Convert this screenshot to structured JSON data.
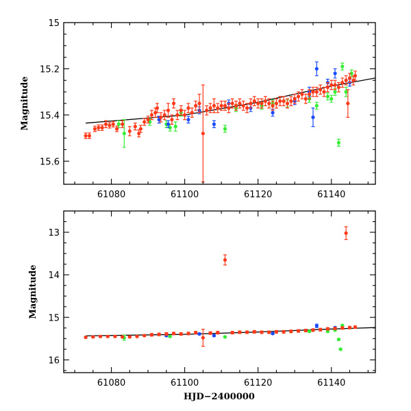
{
  "chart_data": [
    {
      "type": "scatter",
      "panel": "top",
      "title": "",
      "xlabel": "",
      "ylabel": "Magnitude",
      "xlim": [
        61067,
        61152
      ],
      "ylim": [
        15.7,
        15.0
      ],
      "y_inverted": true,
      "xticks": [
        61080,
        61100,
        61120,
        61140
      ],
      "xtick_labels": [
        "61080",
        "61100",
        "61120",
        "61140"
      ],
      "yticks": [
        15,
        15.2,
        15.4,
        15.6
      ],
      "ytick_labels": [
        "15",
        "15.2",
        "15.4",
        "15.6"
      ],
      "fit_line": {
        "x": [
          61073,
          61100,
          61120,
          61140,
          61152
        ],
        "y": [
          15.435,
          15.4,
          15.345,
          15.275,
          15.24
        ],
        "color": "#000000"
      },
      "series": [
        {
          "name": "red",
          "color": "#ff3a1a",
          "points": [
            {
              "x": 61073,
              "y": 15.49,
              "e": 0.012
            },
            {
              "x": 61074,
              "y": 15.49,
              "e": 0.012
            },
            {
              "x": 61075.5,
              "y": 15.46,
              "e": 0.012
            },
            {
              "x": 61076.5,
              "y": 15.455,
              "e": 0.012
            },
            {
              "x": 61077.5,
              "y": 15.455,
              "e": 0.012
            },
            {
              "x": 61078.5,
              "y": 15.44,
              "e": 0.015
            },
            {
              "x": 61079.5,
              "y": 15.445,
              "e": 0.012
            },
            {
              "x": 61080.5,
              "y": 15.44,
              "e": 0.012
            },
            {
              "x": 61081.5,
              "y": 15.46,
              "e": 0.012
            },
            {
              "x": 61083,
              "y": 15.44,
              "e": 0.015
            },
            {
              "x": 61085,
              "y": 15.47,
              "e": 0.02
            },
            {
              "x": 61086.5,
              "y": 15.45,
              "e": 0.015
            },
            {
              "x": 61087.5,
              "y": 15.48,
              "e": 0.015
            },
            {
              "x": 61088,
              "y": 15.46,
              "e": 0.015
            },
            {
              "x": 61089,
              "y": 15.43,
              "e": 0.015
            },
            {
              "x": 61090,
              "y": 15.42,
              "e": 0.015
            },
            {
              "x": 61091,
              "y": 15.4,
              "e": 0.02
            },
            {
              "x": 61092,
              "y": 15.39,
              "e": 0.02
            },
            {
              "x": 61092.5,
              "y": 15.37,
              "e": 0.02
            },
            {
              "x": 61093.5,
              "y": 15.41,
              "e": 0.02
            },
            {
              "x": 61094.5,
              "y": 15.4,
              "e": 0.02
            },
            {
              "x": 61095.5,
              "y": 15.38,
              "e": 0.03
            },
            {
              "x": 61096.5,
              "y": 15.42,
              "e": 0.02
            },
            {
              "x": 61097,
              "y": 15.35,
              "e": 0.02
            },
            {
              "x": 61098,
              "y": 15.4,
              "e": 0.02
            },
            {
              "x": 61099,
              "y": 15.38,
              "e": 0.02
            },
            {
              "x": 61100,
              "y": 15.4,
              "e": 0.02
            },
            {
              "x": 61101,
              "y": 15.37,
              "e": 0.02
            },
            {
              "x": 61102,
              "y": 15.39,
              "e": 0.02
            },
            {
              "x": 61103,
              "y": 15.36,
              "e": 0.02
            },
            {
              "x": 61104,
              "y": 15.35,
              "e": 0.04
            },
            {
              "x": 61105,
              "y": 15.48,
              "e": 0.21
            },
            {
              "x": 61106,
              "y": 15.38,
              "e": 0.02
            },
            {
              "x": 61107,
              "y": 15.37,
              "e": 0.02
            },
            {
              "x": 61108,
              "y": 15.36,
              "e": 0.03
            },
            {
              "x": 61109,
              "y": 15.37,
              "e": 0.02
            },
            {
              "x": 61110,
              "y": 15.36,
              "e": 0.02
            },
            {
              "x": 61111,
              "y": 15.36,
              "e": 0.02
            },
            {
              "x": 61112,
              "y": 15.37,
              "e": 0.02
            },
            {
              "x": 61113,
              "y": 15.35,
              "e": 0.02
            },
            {
              "x": 61114,
              "y": 15.36,
              "e": 0.02
            },
            {
              "x": 61115,
              "y": 15.35,
              "e": 0.02
            },
            {
              "x": 61116,
              "y": 15.36,
              "e": 0.02
            },
            {
              "x": 61117,
              "y": 15.37,
              "e": 0.02
            },
            {
              "x": 61118,
              "y": 15.35,
              "e": 0.02
            },
            {
              "x": 61119,
              "y": 15.34,
              "e": 0.02
            },
            {
              "x": 61120,
              "y": 15.35,
              "e": 0.02
            },
            {
              "x": 61121,
              "y": 15.35,
              "e": 0.02
            },
            {
              "x": 61122,
              "y": 15.34,
              "e": 0.02
            },
            {
              "x": 61123,
              "y": 15.35,
              "e": 0.02
            },
            {
              "x": 61124,
              "y": 15.36,
              "e": 0.02
            },
            {
              "x": 61125,
              "y": 15.35,
              "e": 0.02
            },
            {
              "x": 61126,
              "y": 15.34,
              "e": 0.02
            },
            {
              "x": 61127,
              "y": 15.34,
              "e": 0.02
            },
            {
              "x": 61128,
              "y": 15.35,
              "e": 0.02
            },
            {
              "x": 61129,
              "y": 15.34,
              "e": 0.02
            },
            {
              "x": 61130,
              "y": 15.33,
              "e": 0.02
            },
            {
              "x": 61131,
              "y": 15.32,
              "e": 0.02
            },
            {
              "x": 61132,
              "y": 15.31,
              "e": 0.02
            },
            {
              "x": 61133,
              "y": 15.33,
              "e": 0.02
            },
            {
              "x": 61134,
              "y": 15.31,
              "e": 0.02
            },
            {
              "x": 61135,
              "y": 15.3,
              "e": 0.02
            },
            {
              "x": 61136,
              "y": 15.3,
              "e": 0.02
            },
            {
              "x": 61137,
              "y": 15.29,
              "e": 0.02
            },
            {
              "x": 61138,
              "y": 15.3,
              "e": 0.02
            },
            {
              "x": 61139,
              "y": 15.28,
              "e": 0.02
            },
            {
              "x": 61140,
              "y": 15.27,
              "e": 0.02
            },
            {
              "x": 61141,
              "y": 15.27,
              "e": 0.02
            },
            {
              "x": 61142,
              "y": 15.28,
              "e": 0.02
            },
            {
              "x": 61143,
              "y": 15.26,
              "e": 0.02
            },
            {
              "x": 61144,
              "y": 15.25,
              "e": 0.02
            },
            {
              "x": 61144.5,
              "y": 15.35,
              "e": 0.06
            },
            {
              "x": 61145,
              "y": 15.24,
              "e": 0.02
            },
            {
              "x": 61146,
              "y": 15.25,
              "e": 0.02
            },
            {
              "x": 61146.5,
              "y": 15.23,
              "e": 0.02
            }
          ]
        },
        {
          "name": "green",
          "color": "#33ee33",
          "points": [
            {
              "x": 61082,
              "y": 15.44,
              "e": 0.015
            },
            {
              "x": 61083.5,
              "y": 15.48,
              "e": 0.06
            },
            {
              "x": 61090.5,
              "y": 15.43,
              "e": 0.015
            },
            {
              "x": 61095,
              "y": 15.44,
              "e": 0.015
            },
            {
              "x": 61096,
              "y": 15.455,
              "e": 0.015
            },
            {
              "x": 61097.5,
              "y": 15.45,
              "e": 0.02
            },
            {
              "x": 61099,
              "y": 15.39,
              "e": 0.015
            },
            {
              "x": 61111,
              "y": 15.46,
              "e": 0.015
            },
            {
              "x": 61114,
              "y": 15.37,
              "e": 0.015
            },
            {
              "x": 61121,
              "y": 15.36,
              "e": 0.015
            },
            {
              "x": 61124,
              "y": 15.35,
              "e": 0.015
            },
            {
              "x": 61128,
              "y": 15.35,
              "e": 0.015
            },
            {
              "x": 61134,
              "y": 15.33,
              "e": 0.015
            },
            {
              "x": 61136,
              "y": 15.36,
              "e": 0.015
            },
            {
              "x": 61139,
              "y": 15.32,
              "e": 0.015
            },
            {
              "x": 61140,
              "y": 15.33,
              "e": 0.015
            },
            {
              "x": 61141,
              "y": 15.3,
              "e": 0.015
            },
            {
              "x": 61142,
              "y": 15.52,
              "e": 0.015
            },
            {
              "x": 61143,
              "y": 15.19,
              "e": 0.015
            },
            {
              "x": 61144,
              "y": 15.3,
              "e": 0.02
            },
            {
              "x": 61145.5,
              "y": 15.22,
              "e": 0.015
            }
          ]
        },
        {
          "name": "blue",
          "color": "#1a4bff",
          "points": [
            {
              "x": 61093,
              "y": 15.42,
              "e": 0.015
            },
            {
              "x": 61095.5,
              "y": 15.44,
              "e": 0.015
            },
            {
              "x": 61101,
              "y": 15.42,
              "e": 0.015
            },
            {
              "x": 61104,
              "y": 15.38,
              "e": 0.015
            },
            {
              "x": 61108,
              "y": 15.44,
              "e": 0.015
            },
            {
              "x": 61112,
              "y": 15.35,
              "e": 0.015
            },
            {
              "x": 61118,
              "y": 15.37,
              "e": 0.015
            },
            {
              "x": 61124,
              "y": 15.39,
              "e": 0.015
            },
            {
              "x": 61130,
              "y": 15.34,
              "e": 0.015
            },
            {
              "x": 61134,
              "y": 15.3,
              "e": 0.02
            },
            {
              "x": 61135,
              "y": 15.41,
              "e": 0.04
            },
            {
              "x": 61136,
              "y": 15.2,
              "e": 0.03
            },
            {
              "x": 61139,
              "y": 15.26,
              "e": 0.015
            },
            {
              "x": 61141,
              "y": 15.22,
              "e": 0.02
            },
            {
              "x": 61145,
              "y": 15.26,
              "e": 0.015
            }
          ]
        }
      ]
    },
    {
      "type": "scatter",
      "panel": "bottom",
      "title": "",
      "xlabel": "HJD−2400000",
      "ylabel": "Magnitude",
      "xlim": [
        61067,
        61152
      ],
      "ylim": [
        16.3,
        12.5
      ],
      "y_inverted": true,
      "xticks": [
        61080,
        61100,
        61120,
        61140
      ],
      "xtick_labels": [
        "61080",
        "61100",
        "61120",
        "61140"
      ],
      "yticks": [
        13,
        14,
        15,
        16
      ],
      "ytick_labels": [
        "13",
        "14",
        "15",
        "16"
      ],
      "fit_line": {
        "x": [
          61073,
          61100,
          61120,
          61140,
          61152
        ],
        "y": [
          15.435,
          15.4,
          15.345,
          15.275,
          15.24
        ],
        "color": "#000000"
      },
      "series": [
        {
          "name": "red",
          "color": "#ff3a1a",
          "points": [
            {
              "x": 61073,
              "y": 15.47,
              "e": 0.02
            },
            {
              "x": 61075,
              "y": 15.46,
              "e": 0.02
            },
            {
              "x": 61077,
              "y": 15.45,
              "e": 0.02
            },
            {
              "x": 61079,
              "y": 15.45,
              "e": 0.02
            },
            {
              "x": 61081,
              "y": 15.45,
              "e": 0.02
            },
            {
              "x": 61083,
              "y": 15.46,
              "e": 0.02
            },
            {
              "x": 61085,
              "y": 15.46,
              "e": 0.02
            },
            {
              "x": 61087,
              "y": 15.45,
              "e": 0.02
            },
            {
              "x": 61089,
              "y": 15.43,
              "e": 0.02
            },
            {
              "x": 61091,
              "y": 15.41,
              "e": 0.03
            },
            {
              "x": 61093,
              "y": 15.4,
              "e": 0.03
            },
            {
              "x": 61095,
              "y": 15.39,
              "e": 0.03
            },
            {
              "x": 61097,
              "y": 15.38,
              "e": 0.03
            },
            {
              "x": 61099,
              "y": 15.39,
              "e": 0.03
            },
            {
              "x": 61101,
              "y": 15.38,
              "e": 0.03
            },
            {
              "x": 61103,
              "y": 15.36,
              "e": 0.03
            },
            {
              "x": 61105,
              "y": 15.48,
              "e": 0.2
            },
            {
              "x": 61107,
              "y": 15.37,
              "e": 0.03
            },
            {
              "x": 61109,
              "y": 15.36,
              "e": 0.03
            },
            {
              "x": 61111,
              "y": 13.65,
              "e": 0.12
            },
            {
              "x": 61113,
              "y": 15.36,
              "e": 0.03
            },
            {
              "x": 61115,
              "y": 15.35,
              "e": 0.03
            },
            {
              "x": 61117,
              "y": 15.35,
              "e": 0.03
            },
            {
              "x": 61119,
              "y": 15.34,
              "e": 0.03
            },
            {
              "x": 61121,
              "y": 15.35,
              "e": 0.03
            },
            {
              "x": 61123,
              "y": 15.35,
              "e": 0.03
            },
            {
              "x": 61125,
              "y": 15.34,
              "e": 0.03
            },
            {
              "x": 61127,
              "y": 15.34,
              "e": 0.03
            },
            {
              "x": 61129,
              "y": 15.33,
              "e": 0.03
            },
            {
              "x": 61131,
              "y": 15.32,
              "e": 0.03
            },
            {
              "x": 61133,
              "y": 15.31,
              "e": 0.03
            },
            {
              "x": 61135,
              "y": 15.3,
              "e": 0.03
            },
            {
              "x": 61137,
              "y": 15.29,
              "e": 0.03
            },
            {
              "x": 61139,
              "y": 15.27,
              "e": 0.03
            },
            {
              "x": 61141,
              "y": 15.26,
              "e": 0.03
            },
            {
              "x": 61143,
              "y": 15.25,
              "e": 0.03
            },
            {
              "x": 61144,
              "y": 13.02,
              "e": 0.15
            },
            {
              "x": 61145,
              "y": 15.24,
              "e": 0.03
            },
            {
              "x": 61146.5,
              "y": 15.23,
              "e": 0.03
            }
          ]
        },
        {
          "name": "green",
          "color": "#33ee33",
          "points": [
            {
              "x": 61083.5,
              "y": 15.48,
              "e": 0.06
            },
            {
              "x": 61096,
              "y": 15.45,
              "e": 0.02
            },
            {
              "x": 61111,
              "y": 15.46,
              "e": 0.02
            },
            {
              "x": 61134,
              "y": 15.33,
              "e": 0.02
            },
            {
              "x": 61139,
              "y": 15.33,
              "e": 0.02
            },
            {
              "x": 61141,
              "y": 15.3,
              "e": 0.02
            },
            {
              "x": 61142,
              "y": 15.52,
              "e": 0.02
            },
            {
              "x": 61142.5,
              "y": 15.75,
              "e": 0.02
            },
            {
              "x": 61143,
              "y": 15.19,
              "e": 0.02
            }
          ]
        },
        {
          "name": "blue",
          "color": "#1a4bff",
          "points": [
            {
              "x": 61095,
              "y": 15.43,
              "e": 0.02
            },
            {
              "x": 61104,
              "y": 15.39,
              "e": 0.02
            },
            {
              "x": 61108,
              "y": 15.43,
              "e": 0.02
            },
            {
              "x": 61124,
              "y": 15.38,
              "e": 0.02
            },
            {
              "x": 61136,
              "y": 15.2,
              "e": 0.04
            },
            {
              "x": 61141,
              "y": 15.24,
              "e": 0.02
            }
          ]
        }
      ]
    }
  ]
}
